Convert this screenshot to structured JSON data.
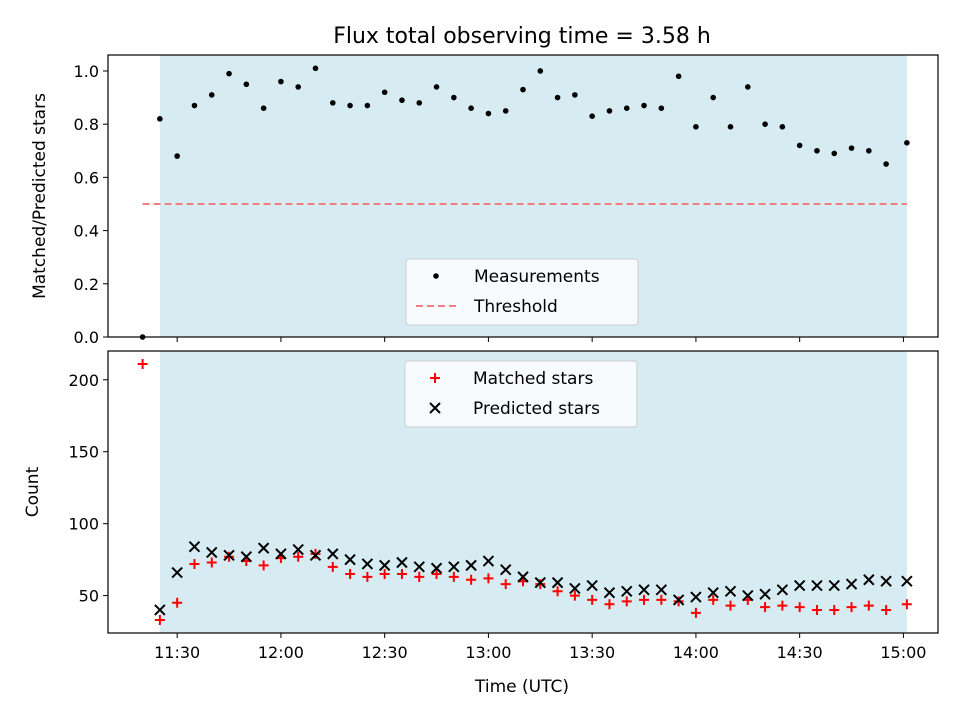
{
  "chart_data": [
    {
      "type": "scatter",
      "title": "Flux total observing time = 3.58 h",
      "ylabel": "Matched/Predicted stars",
      "xlabel": "",
      "ylim": [
        0,
        1.06
      ],
      "yticks": [
        "0.0",
        "0.2",
        "0.4",
        "0.6",
        "0.8",
        "1.0"
      ],
      "ytick_values": [
        0,
        0.2,
        0.4,
        0.6,
        0.8,
        1.0
      ],
      "xlim": [
        "11:10",
        "15:10"
      ],
      "shaded_range": [
        "11:25",
        "15:01"
      ],
      "threshold": 0.5,
      "threshold_range": [
        "11:20",
        "15:01"
      ],
      "grid": false,
      "legend_position": "lower-center",
      "series": [
        {
          "name": "Measurements",
          "color": "#000000",
          "x": [
            "11:20",
            "11:25",
            "11:30",
            "11:35",
            "11:40",
            "11:45",
            "11:50",
            "11:55",
            "12:00",
            "12:05",
            "12:10",
            "12:15",
            "12:20",
            "12:25",
            "12:30",
            "12:35",
            "12:40",
            "12:45",
            "12:50",
            "12:55",
            "13:00",
            "13:05",
            "13:10",
            "13:15",
            "13:20",
            "13:25",
            "13:30",
            "13:35",
            "13:40",
            "13:45",
            "13:50",
            "13:55",
            "14:00",
            "14:05",
            "14:10",
            "14:15",
            "14:20",
            "14:25",
            "14:30",
            "14:35",
            "14:40",
            "14:45",
            "14:50",
            "14:55",
            "15:01"
          ],
          "y": [
            0.0,
            0.82,
            0.68,
            0.87,
            0.91,
            0.99,
            0.95,
            0.86,
            0.96,
            0.94,
            1.01,
            0.88,
            0.87,
            0.87,
            0.92,
            0.89,
            0.88,
            0.94,
            0.9,
            0.86,
            0.84,
            0.85,
            0.93,
            1.0,
            0.9,
            0.91,
            0.83,
            0.85,
            0.86,
            0.87,
            0.86,
            0.98,
            0.79,
            0.9,
            0.79,
            0.94,
            0.8,
            0.79,
            0.72,
            0.7,
            0.69,
            0.71,
            0.7,
            0.65,
            0.73
          ]
        },
        {
          "name": "Threshold",
          "color": "#f08080"
        }
      ]
    },
    {
      "type": "scatter",
      "title": "",
      "ylabel": "Count",
      "xlabel": "Time (UTC)",
      "ylim": [
        24,
        220
      ],
      "yticks": [
        "50",
        "100",
        "150",
        "200"
      ],
      "ytick_values": [
        50,
        100,
        150,
        200
      ],
      "xlim": [
        "11:10",
        "15:10"
      ],
      "xticks": [
        "11:30",
        "12:00",
        "12:30",
        "13:00",
        "13:30",
        "14:00",
        "14:30",
        "15:00"
      ],
      "shaded_range": [
        "11:25",
        "15:01"
      ],
      "grid": false,
      "legend_position": "upper-center",
      "series": [
        {
          "name": "Matched stars",
          "marker": "plus",
          "color": "#ff0000",
          "x": [
            "11:20",
            "11:25",
            "11:30",
            "11:35",
            "11:40",
            "11:45",
            "11:50",
            "11:55",
            "12:00",
            "12:05",
            "12:10",
            "12:15",
            "12:20",
            "12:25",
            "12:30",
            "12:35",
            "12:40",
            "12:45",
            "12:50",
            "12:55",
            "13:00",
            "13:05",
            "13:10",
            "13:15",
            "13:20",
            "13:25",
            "13:30",
            "13:35",
            "13:40",
            "13:45",
            "13:50",
            "13:55",
            "14:00",
            "14:05",
            "14:10",
            "14:15",
            "14:20",
            "14:25",
            "14:30",
            "14:35",
            "14:40",
            "14:45",
            "14:50",
            "14:55",
            "15:01"
          ],
          "y": [
            211,
            33,
            45,
            72,
            73,
            77,
            74,
            71,
            76,
            77,
            79,
            70,
            65,
            63,
            65,
            65,
            63,
            65,
            63,
            61,
            62,
            58,
            60,
            58,
            53,
            50,
            47,
            44,
            46,
            47,
            47,
            46,
            38,
            47,
            43,
            47,
            42,
            43,
            42,
            40,
            40,
            42,
            43,
            40,
            44
          ]
        },
        {
          "name": "Predicted stars",
          "marker": "x",
          "color": "#000000",
          "x": [
            "11:25",
            "11:30",
            "11:35",
            "11:40",
            "11:45",
            "11:50",
            "11:55",
            "12:00",
            "12:05",
            "12:10",
            "12:15",
            "12:20",
            "12:25",
            "12:30",
            "12:35",
            "12:40",
            "12:45",
            "12:50",
            "12:55",
            "13:00",
            "13:05",
            "13:10",
            "13:15",
            "13:20",
            "13:25",
            "13:30",
            "13:35",
            "13:40",
            "13:45",
            "13:50",
            "13:55",
            "14:00",
            "14:05",
            "14:10",
            "14:15",
            "14:20",
            "14:25",
            "14:30",
            "14:35",
            "14:40",
            "14:45",
            "14:50",
            "14:55",
            "15:01"
          ],
          "y": [
            40,
            66,
            84,
            80,
            78,
            77,
            83,
            79,
            82,
            78,
            79,
            75,
            72,
            71,
            73,
            70,
            69,
            70,
            71,
            74,
            68,
            63,
            59,
            59,
            55,
            57,
            52,
            53,
            54,
            54,
            47,
            49,
            52,
            53,
            50,
            51,
            54,
            57,
            57,
            57,
            58,
            61,
            60,
            60
          ]
        }
      ]
    }
  ]
}
